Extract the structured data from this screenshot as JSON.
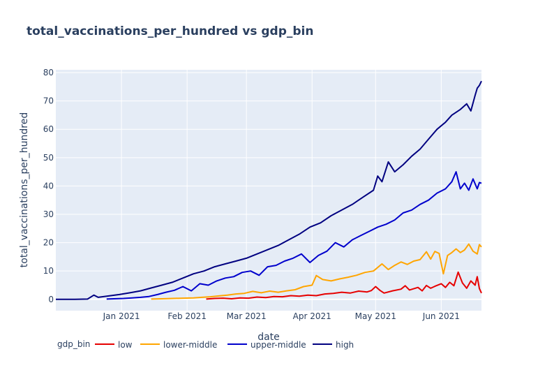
{
  "chart_data": {
    "type": "line",
    "title": "total_vaccinations_per_hundred vs gdp_bin",
    "xlabel": "date",
    "ylabel": "total_vaccinations_per_hundred",
    "x_ticks": [
      "Jan 2021",
      "Feb 2021",
      "Mar 2021",
      "Apr 2021",
      "May 2021",
      "Jun 2021"
    ],
    "y_ticks": [
      0,
      10,
      20,
      30,
      40,
      50,
      60,
      70,
      80
    ],
    "xlim": [
      "2020-12-01",
      "2021-06-20"
    ],
    "ylim": [
      -4,
      81
    ],
    "grid": true,
    "legend_title": "gdp_bin",
    "legend_position": "bottom",
    "series": [
      {
        "name": "low",
        "color": "#e60000",
        "points": [
          [
            "2021-02-10",
            0.1
          ],
          [
            "2021-02-14",
            0.3
          ],
          [
            "2021-02-18",
            0.4
          ],
          [
            "2021-02-22",
            0.2
          ],
          [
            "2021-02-26",
            0.5
          ],
          [
            "2021-03-02",
            0.4
          ],
          [
            "2021-03-06",
            0.8
          ],
          [
            "2021-03-10",
            0.6
          ],
          [
            "2021-03-14",
            1.0
          ],
          [
            "2021-03-18",
            0.9
          ],
          [
            "2021-03-22",
            1.3
          ],
          [
            "2021-03-26",
            1.1
          ],
          [
            "2021-03-30",
            1.5
          ],
          [
            "2021-04-03",
            1.3
          ],
          [
            "2021-04-07",
            1.9
          ],
          [
            "2021-04-11",
            2.1
          ],
          [
            "2021-04-15",
            2.5
          ],
          [
            "2021-04-19",
            2.2
          ],
          [
            "2021-04-23",
            2.9
          ],
          [
            "2021-04-27",
            2.6
          ],
          [
            "2021-04-29",
            3.1
          ],
          [
            "2021-05-01",
            4.5
          ],
          [
            "2021-05-03",
            3.2
          ],
          [
            "2021-05-05",
            2.2
          ],
          [
            "2021-05-09",
            3.0
          ],
          [
            "2021-05-13",
            3.6
          ],
          [
            "2021-05-15",
            4.8
          ],
          [
            "2021-05-17",
            3.3
          ],
          [
            "2021-05-21",
            4.2
          ],
          [
            "2021-05-23",
            3.0
          ],
          [
            "2021-05-25",
            4.9
          ],
          [
            "2021-05-27",
            3.9
          ],
          [
            "2021-05-29",
            4.6
          ],
          [
            "2021-06-01",
            5.5
          ],
          [
            "2021-06-03",
            4.2
          ],
          [
            "2021-06-05",
            6.0
          ],
          [
            "2021-06-07",
            4.8
          ],
          [
            "2021-06-09",
            9.6
          ],
          [
            "2021-06-11",
            5.8
          ],
          [
            "2021-06-13",
            3.9
          ],
          [
            "2021-06-15",
            6.5
          ],
          [
            "2021-06-17",
            5.0
          ],
          [
            "2021-06-18",
            8.0
          ],
          [
            "2021-06-19",
            3.8
          ],
          [
            "2021-06-20",
            2.2
          ]
        ]
      },
      {
        "name": "lower-middle",
        "color": "#ffa500",
        "points": [
          [
            "2021-01-15",
            0.1
          ],
          [
            "2021-01-20",
            0.2
          ],
          [
            "2021-01-25",
            0.3
          ],
          [
            "2021-01-30",
            0.4
          ],
          [
            "2021-02-04",
            0.5
          ],
          [
            "2021-02-08",
            0.7
          ],
          [
            "2021-02-12",
            0.9
          ],
          [
            "2021-02-16",
            1.2
          ],
          [
            "2021-02-20",
            1.5
          ],
          [
            "2021-02-24",
            1.9
          ],
          [
            "2021-02-28",
            2.1
          ],
          [
            "2021-03-04",
            2.8
          ],
          [
            "2021-03-08",
            2.3
          ],
          [
            "2021-03-12",
            2.9
          ],
          [
            "2021-03-16",
            2.5
          ],
          [
            "2021-03-20",
            3.0
          ],
          [
            "2021-03-24",
            3.4
          ],
          [
            "2021-03-28",
            4.5
          ],
          [
            "2021-04-01",
            5.0
          ],
          [
            "2021-04-03",
            8.4
          ],
          [
            "2021-04-06",
            7.0
          ],
          [
            "2021-04-10",
            6.5
          ],
          [
            "2021-04-14",
            7.2
          ],
          [
            "2021-04-18",
            7.8
          ],
          [
            "2021-04-22",
            8.5
          ],
          [
            "2021-04-26",
            9.5
          ],
          [
            "2021-04-30",
            10.0
          ],
          [
            "2021-05-04",
            12.5
          ],
          [
            "2021-05-07",
            10.5
          ],
          [
            "2021-05-10",
            12.0
          ],
          [
            "2021-05-13",
            13.2
          ],
          [
            "2021-05-16",
            12.3
          ],
          [
            "2021-05-19",
            13.5
          ],
          [
            "2021-05-22",
            14.0
          ],
          [
            "2021-05-25",
            16.8
          ],
          [
            "2021-05-27",
            14.2
          ],
          [
            "2021-05-29",
            16.9
          ],
          [
            "2021-05-31",
            16.2
          ],
          [
            "2021-06-02",
            9.0
          ],
          [
            "2021-06-04",
            15.5
          ],
          [
            "2021-06-06",
            16.5
          ],
          [
            "2021-06-08",
            17.8
          ],
          [
            "2021-06-10",
            16.5
          ],
          [
            "2021-06-12",
            17.4
          ],
          [
            "2021-06-14",
            19.5
          ],
          [
            "2021-06-16",
            17.0
          ],
          [
            "2021-06-18",
            16.0
          ],
          [
            "2021-06-19",
            19.3
          ],
          [
            "2021-06-20",
            18.5
          ]
        ]
      },
      {
        "name": "upper-middle",
        "color": "#0000cc",
        "points": [
          [
            "2020-12-25",
            0.1
          ],
          [
            "2021-01-02",
            0.3
          ],
          [
            "2021-01-06",
            0.5
          ],
          [
            "2021-01-10",
            0.7
          ],
          [
            "2021-01-14",
            1.0
          ],
          [
            "2021-01-18",
            1.7
          ],
          [
            "2021-01-22",
            2.5
          ],
          [
            "2021-01-26",
            3.2
          ],
          [
            "2021-01-30",
            4.5
          ],
          [
            "2021-02-03",
            3.0
          ],
          [
            "2021-02-07",
            5.5
          ],
          [
            "2021-02-11",
            5.0
          ],
          [
            "2021-02-15",
            6.5
          ],
          [
            "2021-02-19",
            7.5
          ],
          [
            "2021-02-23",
            8.0
          ],
          [
            "2021-02-27",
            9.5
          ],
          [
            "2021-03-03",
            10.0
          ],
          [
            "2021-03-07",
            8.5
          ],
          [
            "2021-03-11",
            11.5
          ],
          [
            "2021-03-15",
            12.0
          ],
          [
            "2021-03-19",
            13.5
          ],
          [
            "2021-03-23",
            14.5
          ],
          [
            "2021-03-27",
            16.0
          ],
          [
            "2021-03-31",
            13.0
          ],
          [
            "2021-04-04",
            15.5
          ],
          [
            "2021-04-08",
            17.0
          ],
          [
            "2021-04-12",
            20.0
          ],
          [
            "2021-04-16",
            18.5
          ],
          [
            "2021-04-20",
            21.0
          ],
          [
            "2021-04-24",
            22.5
          ],
          [
            "2021-04-28",
            24.0
          ],
          [
            "2021-05-02",
            25.5
          ],
          [
            "2021-05-06",
            26.5
          ],
          [
            "2021-05-10",
            28.0
          ],
          [
            "2021-05-14",
            30.5
          ],
          [
            "2021-05-18",
            31.5
          ],
          [
            "2021-05-22",
            33.5
          ],
          [
            "2021-05-26",
            35.0
          ],
          [
            "2021-05-30",
            37.5
          ],
          [
            "2021-06-03",
            39.0
          ],
          [
            "2021-06-06",
            41.5
          ],
          [
            "2021-06-08",
            45.0
          ],
          [
            "2021-06-10",
            39.0
          ],
          [
            "2021-06-12",
            41.0
          ],
          [
            "2021-06-14",
            38.5
          ],
          [
            "2021-06-16",
            42.5
          ],
          [
            "2021-06-18",
            39.0
          ],
          [
            "2021-06-19",
            41.2
          ],
          [
            "2021-06-20",
            41.0
          ]
        ]
      },
      {
        "name": "high",
        "color": "#000080",
        "points": [
          [
            "2020-12-01",
            0.0
          ],
          [
            "2020-12-10",
            0.0
          ],
          [
            "2020-12-16",
            0.1
          ],
          [
            "2020-12-19",
            1.5
          ],
          [
            "2020-12-21",
            0.7
          ],
          [
            "2020-12-26",
            1.2
          ],
          [
            "2020-12-31",
            1.7
          ],
          [
            "2021-01-05",
            2.3
          ],
          [
            "2021-01-10",
            3.0
          ],
          [
            "2021-01-15",
            4.0
          ],
          [
            "2021-01-20",
            5.0
          ],
          [
            "2021-01-25",
            6.0
          ],
          [
            "2021-01-30",
            7.5
          ],
          [
            "2021-02-04",
            9.0
          ],
          [
            "2021-02-09",
            10.0
          ],
          [
            "2021-02-14",
            11.5
          ],
          [
            "2021-02-19",
            12.5
          ],
          [
            "2021-02-24",
            13.5
          ],
          [
            "2021-03-01",
            14.5
          ],
          [
            "2021-03-06",
            16.0
          ],
          [
            "2021-03-11",
            17.5
          ],
          [
            "2021-03-16",
            19.0
          ],
          [
            "2021-03-21",
            21.0
          ],
          [
            "2021-03-26",
            23.0
          ],
          [
            "2021-03-31",
            25.5
          ],
          [
            "2021-04-05",
            27.0
          ],
          [
            "2021-04-10",
            29.5
          ],
          [
            "2021-04-15",
            31.5
          ],
          [
            "2021-04-20",
            33.5
          ],
          [
            "2021-04-25",
            36.0
          ],
          [
            "2021-04-30",
            38.5
          ],
          [
            "2021-05-02",
            43.5
          ],
          [
            "2021-05-04",
            41.5
          ],
          [
            "2021-05-07",
            48.5
          ],
          [
            "2021-05-10",
            45.0
          ],
          [
            "2021-05-14",
            47.5
          ],
          [
            "2021-05-18",
            50.5
          ],
          [
            "2021-05-22",
            53.0
          ],
          [
            "2021-05-26",
            56.5
          ],
          [
            "2021-05-30",
            60.0
          ],
          [
            "2021-06-03",
            62.5
          ],
          [
            "2021-06-06",
            65.0
          ],
          [
            "2021-06-10",
            67.0
          ],
          [
            "2021-06-13",
            69.0
          ],
          [
            "2021-06-15",
            66.5
          ],
          [
            "2021-06-17",
            72.0
          ],
          [
            "2021-06-18",
            74.5
          ],
          [
            "2021-06-19",
            75.5
          ],
          [
            "2021-06-20",
            77.0
          ]
        ]
      }
    ]
  }
}
